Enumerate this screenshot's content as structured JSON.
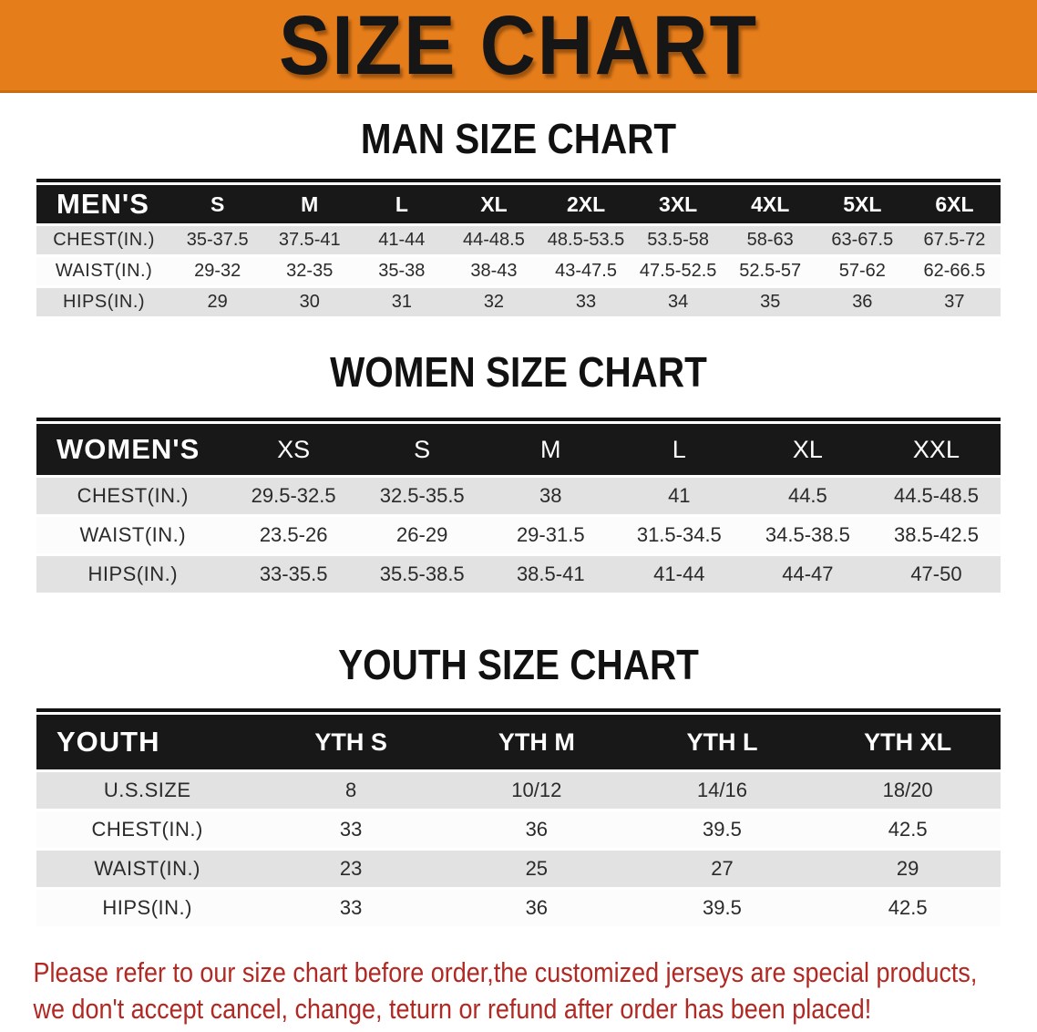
{
  "banner": {
    "title": "SIZE CHART"
  },
  "sections": [
    {
      "id": "men",
      "title": "MAN SIZE CHART",
      "header_label": "MEN'S",
      "columns": [
        "S",
        "M",
        "L",
        "XL",
        "2XL",
        "3XL",
        "4XL",
        "5XL",
        "6XL"
      ],
      "rows": [
        {
          "label": "CHEST(IN.)",
          "values": [
            "35-37.5",
            "37.5-41",
            "41-44",
            "44-48.5",
            "48.5-53.5",
            "53.5-58",
            "58-63",
            "63-67.5",
            "67.5-72"
          ]
        },
        {
          "label": "WAIST(IN.)",
          "values": [
            "29-32",
            "32-35",
            "35-38",
            "38-43",
            "43-47.5",
            "47.5-52.5",
            "52.5-57",
            "57-62",
            "62-66.5"
          ]
        },
        {
          "label": "HIPS(IN.)",
          "values": [
            "29",
            "30",
            "31",
            "32",
            "33",
            "34",
            "35",
            "36",
            "37"
          ]
        }
      ]
    },
    {
      "id": "women",
      "title": "WOMEN SIZE CHART",
      "header_label": "WOMEN'S",
      "columns": [
        "XS",
        "S",
        "M",
        "L",
        "XL",
        "XXL"
      ],
      "rows": [
        {
          "label": "CHEST(IN.)",
          "values": [
            "29.5-32.5",
            "32.5-35.5",
            "38",
            "41",
            "44.5",
            "44.5-48.5"
          ]
        },
        {
          "label": "WAIST(IN.)",
          "values": [
            "23.5-26",
            "26-29",
            "29-31.5",
            "31.5-34.5",
            "34.5-38.5",
            "38.5-42.5"
          ]
        },
        {
          "label": "HIPS(IN.)",
          "values": [
            "33-35.5",
            "35.5-38.5",
            "38.5-41",
            "41-44",
            "44-47",
            "47-50"
          ]
        }
      ]
    },
    {
      "id": "youth",
      "title": "YOUTH SIZE CHART",
      "header_label": "YOUTH",
      "columns": [
        "YTH S",
        "YTH M",
        "YTH L",
        "YTH XL"
      ],
      "rows": [
        {
          "label": "U.S.SIZE",
          "values": [
            "8",
            "10/12",
            "14/16",
            "18/20"
          ]
        },
        {
          "label": "CHEST(IN.)",
          "values": [
            "33",
            "36",
            "39.5",
            "42.5"
          ]
        },
        {
          "label": "WAIST(IN.)",
          "values": [
            "23",
            "25",
            "27",
            "29"
          ]
        },
        {
          "label": "HIPS(IN.)",
          "values": [
            "33",
            "36",
            "39.5",
            "42.5"
          ]
        }
      ]
    }
  ],
  "disclaimer": {
    "line1": "Please refer to our size chart before order,the customized jerseys are special products,",
    "line2": "we don't accept cancel, change, teturn or refund after order has been placed!"
  },
  "colors": {
    "banner_orange": "#e67d1b",
    "band_black": "#181818",
    "stripe_gray": "#e2e2e2",
    "disclaimer_red": "#b22823"
  }
}
